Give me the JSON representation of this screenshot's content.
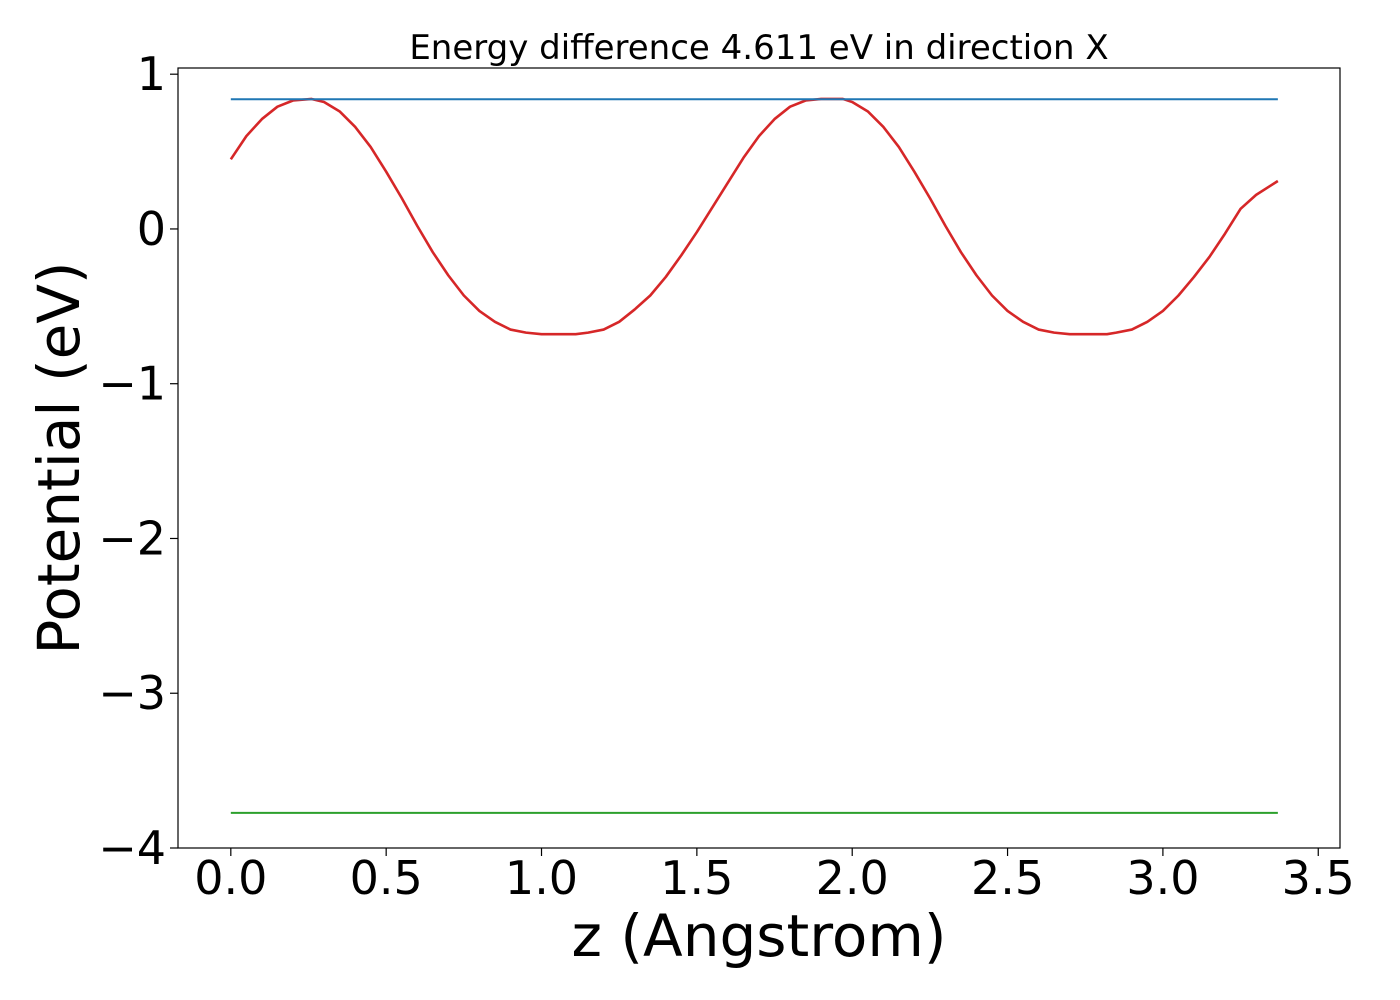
{
  "chart_data": {
    "type": "line",
    "title": "Energy difference 4.611 eV in direction X",
    "xlabel": "z (Angstrom)",
    "ylabel": "Potential (eV)",
    "xlim": [
      -0.17,
      3.57
    ],
    "ylim": [
      -4.0,
      1.04
    ],
    "grid": false,
    "legend": "none",
    "x_ticks": [
      {
        "value": 0.0,
        "label": "0.0"
      },
      {
        "value": 0.5,
        "label": "0.5"
      },
      {
        "value": 1.0,
        "label": "1.0"
      },
      {
        "value": 1.5,
        "label": "1.5"
      },
      {
        "value": 2.0,
        "label": "2.0"
      },
      {
        "value": 2.5,
        "label": "2.5"
      },
      {
        "value": 3.0,
        "label": "3.0"
      },
      {
        "value": 3.5,
        "label": "3.5"
      }
    ],
    "y_ticks": [
      {
        "value": 1,
        "label": "1"
      },
      {
        "value": 0,
        "label": "0"
      },
      {
        "value": -1,
        "label": "−1"
      },
      {
        "value": -2,
        "label": "−2"
      },
      {
        "value": -3,
        "label": "−3"
      },
      {
        "value": -4,
        "label": "−4"
      }
    ],
    "series": [
      {
        "color": "#d62728",
        "x": [
          0.0,
          0.05,
          0.1,
          0.15,
          0.2,
          0.26,
          0.3,
          0.35,
          0.4,
          0.45,
          0.5,
          0.55,
          0.6,
          0.65,
          0.7,
          0.75,
          0.8,
          0.85,
          0.9,
          0.95,
          1.0,
          1.05,
          1.11,
          1.15,
          1.2,
          1.25,
          1.3,
          1.35,
          1.4,
          1.45,
          1.5,
          1.55,
          1.6,
          1.65,
          1.7,
          1.75,
          1.8,
          1.85,
          1.9,
          1.97,
          2.0,
          2.05,
          2.1,
          2.15,
          2.2,
          2.25,
          2.3,
          2.35,
          2.4,
          2.45,
          2.5,
          2.55,
          2.6,
          2.65,
          2.7,
          2.75,
          2.82,
          2.85,
          2.9,
          2.95,
          3.0,
          3.05,
          3.1,
          3.15,
          3.2,
          3.25,
          3.3,
          3.37
        ],
        "y": [
          0.45,
          0.6,
          0.71,
          0.79,
          0.83,
          0.84,
          0.82,
          0.76,
          0.66,
          0.53,
          0.37,
          0.2,
          0.02,
          -0.15,
          -0.3,
          -0.43,
          -0.53,
          -0.6,
          -0.65,
          -0.67,
          -0.68,
          -0.68,
          -0.68,
          -0.67,
          -0.65,
          -0.6,
          -0.52,
          -0.43,
          -0.31,
          -0.17,
          -0.02,
          0.14,
          0.3,
          0.46,
          0.6,
          0.71,
          0.79,
          0.83,
          0.84,
          0.84,
          0.82,
          0.76,
          0.66,
          0.53,
          0.37,
          0.2,
          0.02,
          -0.15,
          -0.3,
          -0.43,
          -0.53,
          -0.6,
          -0.65,
          -0.67,
          -0.68,
          -0.68,
          -0.68,
          -0.67,
          -0.65,
          -0.6,
          -0.53,
          -0.43,
          -0.31,
          -0.18,
          -0.03,
          0.13,
          0.22,
          0.31
        ]
      },
      {
        "color": "#1f77b4",
        "x": [
          0.0,
          3.37
        ],
        "y": [
          0.838,
          0.838
        ]
      },
      {
        "color": "#2ca02c",
        "x": [
          0.0,
          3.37
        ],
        "y": [
          -3.773,
          -3.773
        ]
      }
    ]
  }
}
